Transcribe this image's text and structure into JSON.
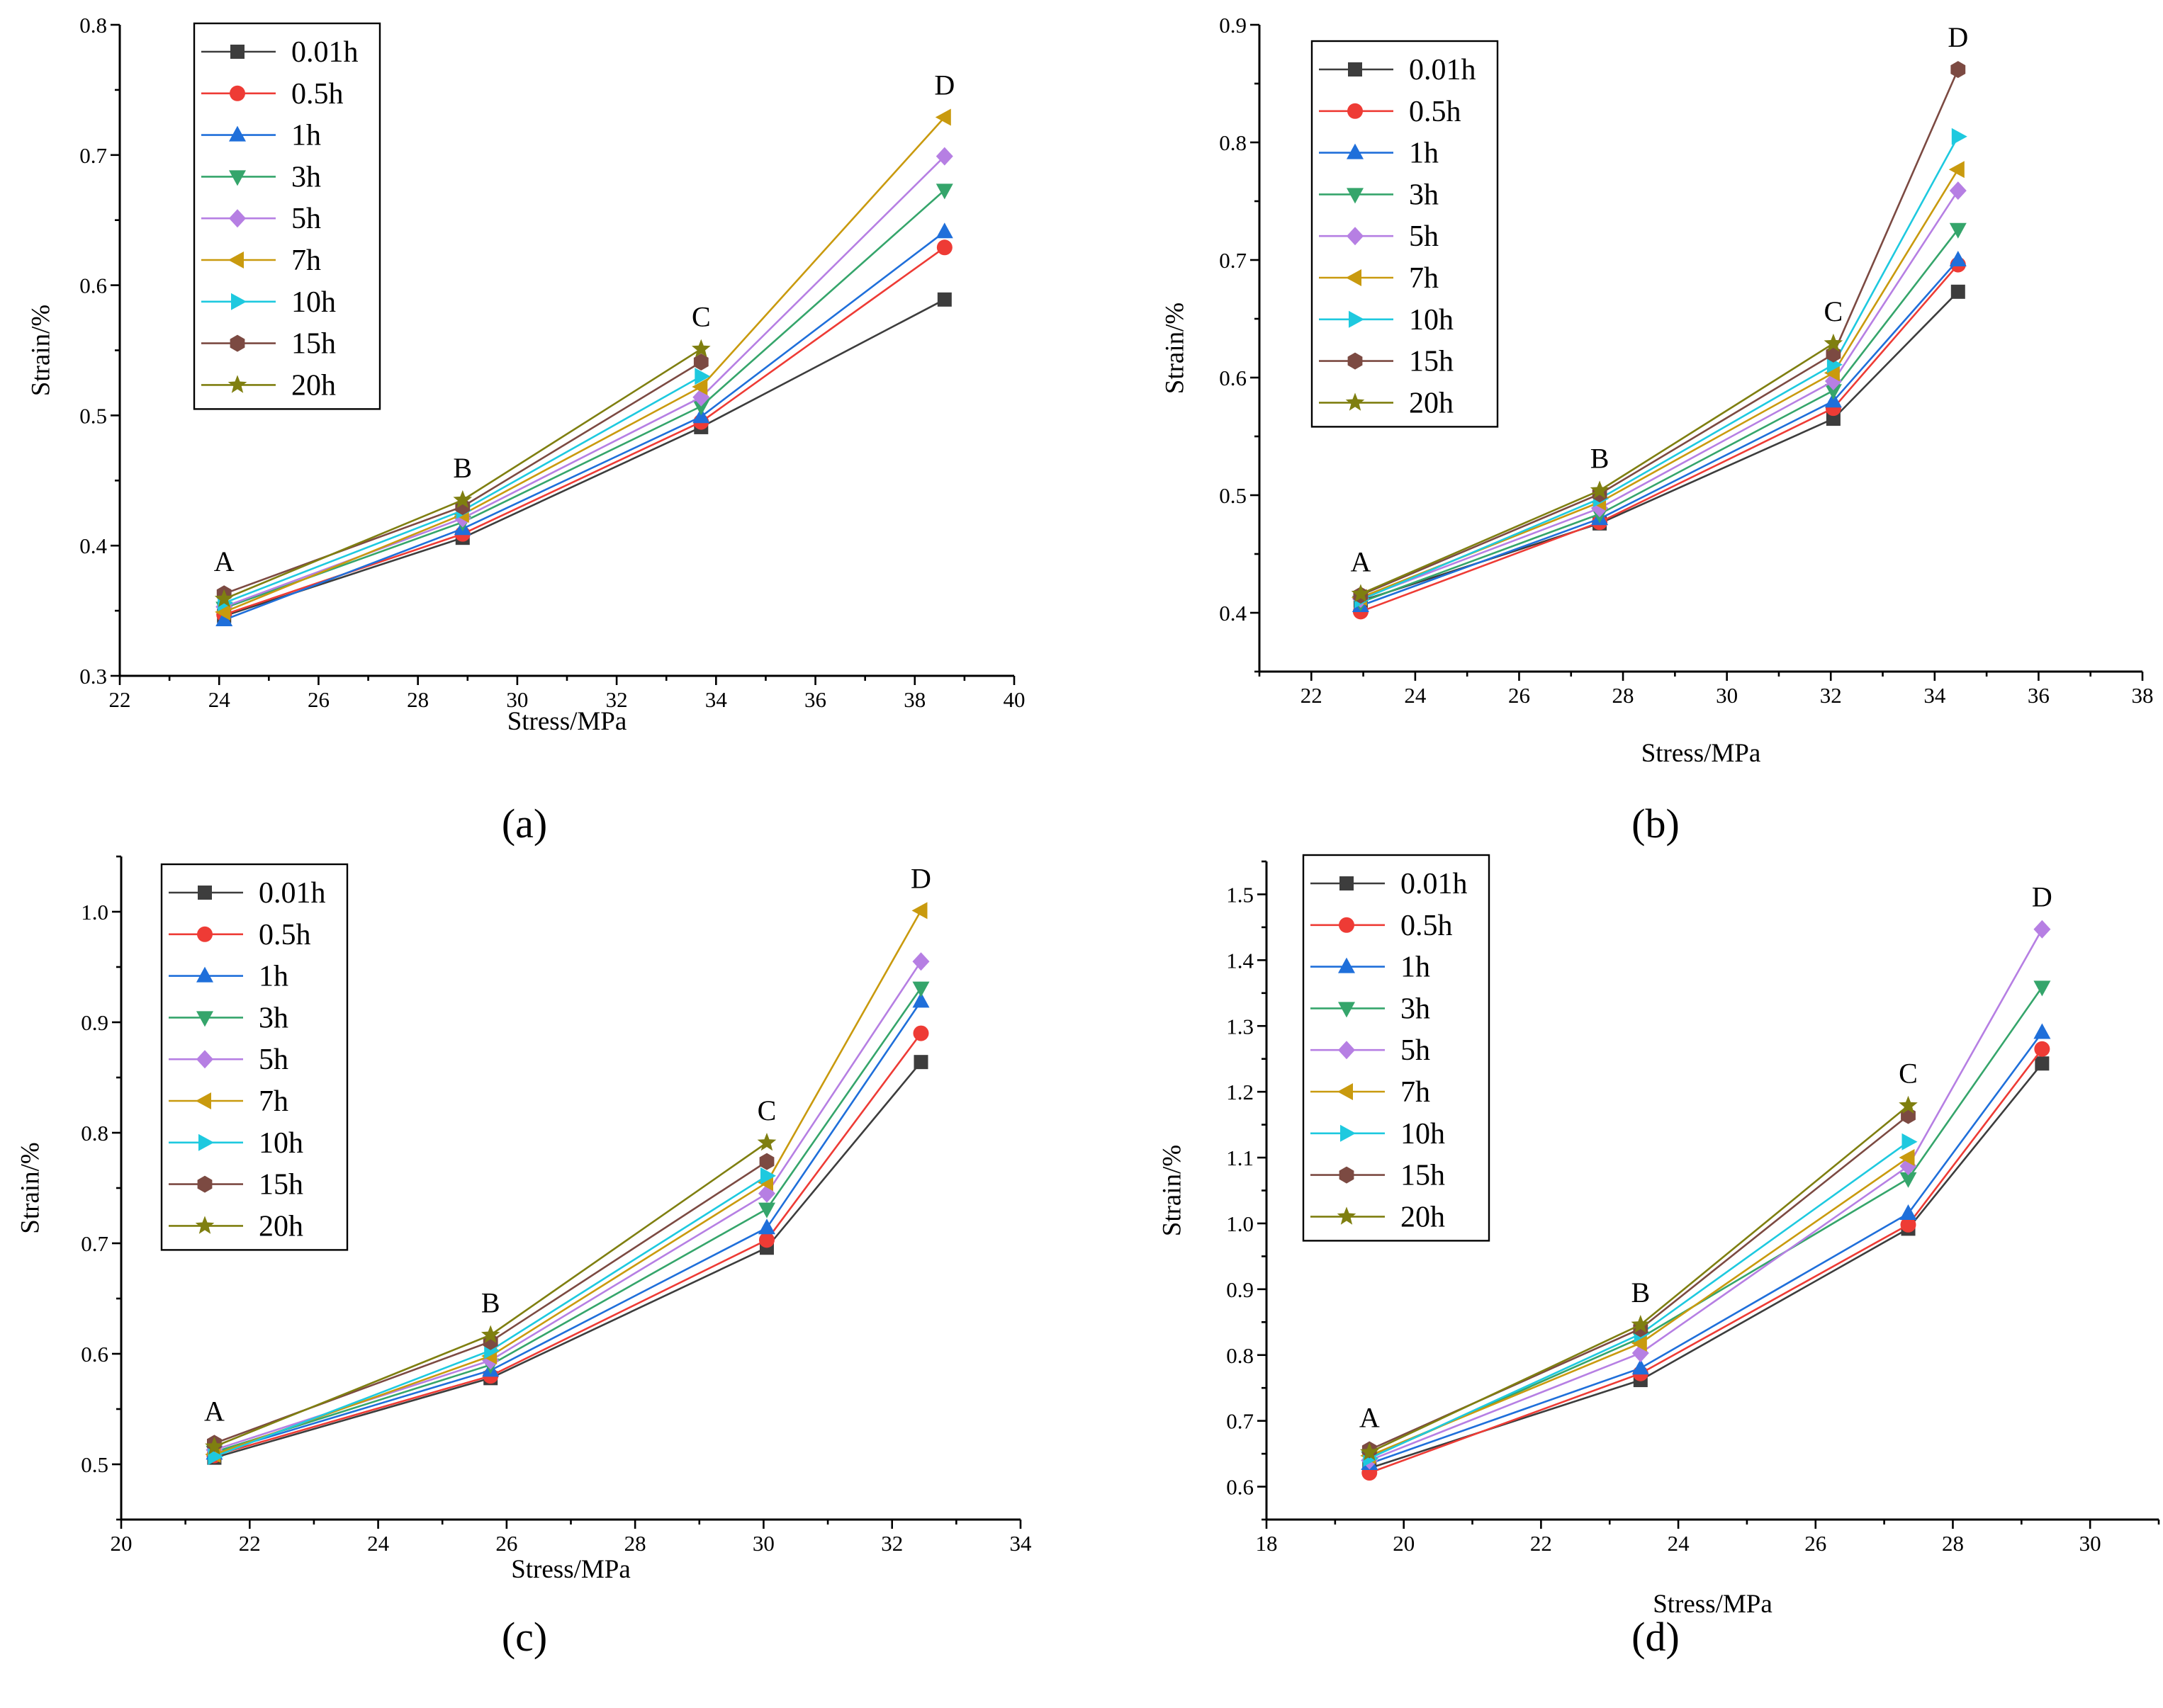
{
  "series_style": [
    {
      "color": "#3d3d3d",
      "marker": "square"
    },
    {
      "color": "#ee3b35",
      "marker": "circle"
    },
    {
      "color": "#1f6fda",
      "marker": "triangle-up"
    },
    {
      "color": "#35a56b",
      "marker": "triangle-down"
    },
    {
      "color": "#b67fe3",
      "marker": "diamond"
    },
    {
      "color": "#c99a0e",
      "marker": "triangle-left"
    },
    {
      "color": "#1ec9df",
      "marker": "triangle-right"
    },
    {
      "color": "#7c4a42",
      "marker": "hexagon"
    },
    {
      "color": "#7f7f10",
      "marker": "star"
    }
  ],
  "chart_data": [
    {
      "type": "line",
      "panel_label": "(a)",
      "xlabel": "Stress/MPa",
      "ylabel": "Strain/%",
      "xlim": [
        22,
        40
      ],
      "ylim": [
        0.3,
        0.8
      ],
      "xticks": [
        "22",
        "24",
        "26",
        "28",
        "30",
        "32",
        "34",
        "36",
        "38",
        "40"
      ],
      "yticks": [
        "0.3",
        "0.4",
        "0.5",
        "0.6",
        "0.7",
        "0.8"
      ],
      "legend": "top-left",
      "annotations": [
        "A",
        "B",
        "C",
        "D"
      ],
      "x": [
        24.1,
        28.9,
        33.7,
        38.6
      ],
      "series": [
        {
          "name": "0.01h",
          "values": [
            0.346,
            0.406,
            0.491,
            0.589
          ]
        },
        {
          "name": "0.5h",
          "values": [
            0.347,
            0.409,
            0.495,
            0.629
          ]
        },
        {
          "name": "1h",
          "values": [
            0.343,
            0.413,
            0.499,
            0.641
          ]
        },
        {
          "name": "3h",
          "values": [
            0.352,
            0.418,
            0.507,
            0.673
          ]
        },
        {
          "name": "5h",
          "values": [
            0.353,
            0.421,
            0.514,
            0.699
          ]
        },
        {
          "name": "7h",
          "values": [
            0.349,
            0.424,
            0.522,
            0.729
          ]
        },
        {
          "name": "10h",
          "values": [
            0.356,
            0.427,
            0.53,
            null
          ]
        },
        {
          "name": "15h",
          "values": [
            0.363,
            0.43,
            0.541,
            null
          ]
        },
        {
          "name": "20h",
          "values": [
            0.359,
            0.435,
            0.551,
            null
          ]
        }
      ]
    },
    {
      "type": "line",
      "panel_label": "(b)",
      "xlabel": "Stress/MPa",
      "ylabel": "Strain/%",
      "xlim": [
        21,
        38
      ],
      "ylim": [
        0.35,
        0.9
      ],
      "xticks": [
        "22",
        "24",
        "26",
        "28",
        "30",
        "32",
        "34",
        "36",
        "38"
      ],
      "yticks": [
        "0.4",
        "0.5",
        "0.6",
        "0.7",
        "0.8",
        "0.9"
      ],
      "legend": "top-left",
      "annotations": [
        "A",
        "B",
        "C",
        "D"
      ],
      "x": [
        22.95,
        27.55,
        32.05,
        34.45
      ],
      "series": [
        {
          "name": "0.01h",
          "values": [
            0.41,
            0.476,
            0.565,
            0.673
          ]
        },
        {
          "name": "0.5h",
          "values": [
            0.401,
            0.477,
            0.574,
            0.696
          ]
        },
        {
          "name": "1h",
          "values": [
            0.406,
            0.48,
            0.58,
            0.7
          ]
        },
        {
          "name": "3h",
          "values": [
            0.409,
            0.484,
            0.589,
            0.726
          ]
        },
        {
          "name": "5h",
          "values": [
            0.412,
            0.489,
            0.597,
            0.759
          ]
        },
        {
          "name": "7h",
          "values": [
            0.413,
            0.494,
            0.604,
            0.777
          ]
        },
        {
          "name": "10h",
          "values": [
            0.411,
            0.497,
            0.611,
            0.805
          ]
        },
        {
          "name": "15h",
          "values": [
            0.415,
            0.501,
            0.62,
            0.862
          ]
        },
        {
          "name": "20h",
          "values": [
            0.416,
            0.504,
            0.629,
            null
          ]
        }
      ]
    },
    {
      "type": "line",
      "panel_label": "(c)",
      "xlabel": "Stress/MPa",
      "ylabel": "Strain/%",
      "xlim": [
        20,
        34
      ],
      "ylim": [
        0.45,
        1.05
      ],
      "xticks": [
        "20",
        "22",
        "24",
        "26",
        "28",
        "30",
        "32",
        "34"
      ],
      "yticks": [
        "0.5",
        "0.6",
        "0.7",
        "0.8",
        "0.9",
        "1.0"
      ],
      "legend": "top-left",
      "annotations": [
        "A",
        "B",
        "C",
        "D"
      ],
      "x": [
        21.45,
        25.75,
        30.05,
        32.45
      ],
      "series": [
        {
          "name": "0.01h",
          "values": [
            0.506,
            0.578,
            0.696,
            0.864
          ]
        },
        {
          "name": "0.5h",
          "values": [
            0.508,
            0.58,
            0.703,
            0.89
          ]
        },
        {
          "name": "1h",
          "values": [
            0.51,
            0.585,
            0.714,
            0.919
          ]
        },
        {
          "name": "3h",
          "values": [
            0.511,
            0.59,
            0.731,
            0.931
          ]
        },
        {
          "name": "5h",
          "values": [
            0.513,
            0.594,
            0.745,
            0.955
          ]
        },
        {
          "name": "7h",
          "values": [
            0.509,
            0.598,
            0.755,
            1.001
          ]
        },
        {
          "name": "10h",
          "values": [
            0.507,
            0.603,
            0.761,
            null
          ]
        },
        {
          "name": "15h",
          "values": [
            0.519,
            0.611,
            0.774,
            null
          ]
        },
        {
          "name": "20h",
          "values": [
            0.516,
            0.617,
            0.791,
            null
          ]
        }
      ]
    },
    {
      "type": "line",
      "panel_label": "(d)",
      "xlabel": "Stress/MPa",
      "ylabel": "Strain/%",
      "xlim": [
        18,
        31
      ],
      "ylim": [
        0.55,
        1.55
      ],
      "xticks": [
        "18",
        "20",
        "22",
        "24",
        "26",
        "28",
        "30"
      ],
      "yticks": [
        "0.6",
        "0.7",
        "0.8",
        "0.9",
        "1.0",
        "1.1",
        "1.2",
        "1.3",
        "1.4",
        "1.5"
      ],
      "legend": "top-left",
      "annotations": [
        "A",
        "B",
        "C",
        "D"
      ],
      "x": [
        19.5,
        23.45,
        27.35,
        29.3
      ],
      "series": [
        {
          "name": "0.01h",
          "values": [
            0.628,
            0.762,
            0.992,
            1.243
          ]
        },
        {
          "name": "0.5h",
          "values": [
            0.621,
            0.772,
            0.998,
            1.265
          ]
        },
        {
          "name": "1h",
          "values": [
            0.635,
            0.78,
            1.015,
            1.29
          ]
        },
        {
          "name": "3h",
          "values": [
            0.644,
            0.826,
            1.068,
            1.359
          ]
        },
        {
          "name": "5h",
          "values": [
            0.64,
            0.803,
            1.087,
            1.447
          ]
        },
        {
          "name": "7h",
          "values": [
            0.647,
            0.818,
            1.1,
            null
          ]
        },
        {
          "name": "10h",
          "values": [
            0.643,
            0.832,
            1.124,
            null
          ]
        },
        {
          "name": "15h",
          "values": [
            0.656,
            0.84,
            1.164,
            null
          ]
        },
        {
          "name": "20h",
          "values": [
            0.652,
            0.846,
            1.179,
            null
          ]
        }
      ]
    }
  ]
}
